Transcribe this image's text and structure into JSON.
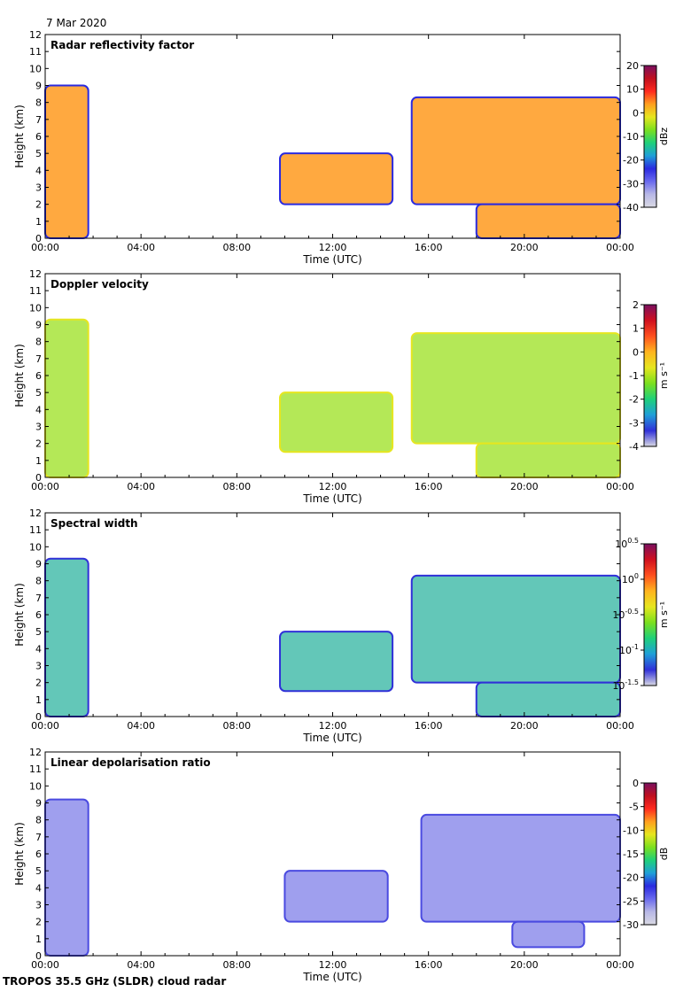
{
  "date": "7 Mar 2020",
  "footer": "TROPOS 35.5 GHz (SLDR) cloud radar",
  "shared": {
    "xlabel": "Time (UTC)",
    "ylabel": "Height (km)",
    "xticks": [
      "00:00",
      "04:00",
      "08:00",
      "12:00",
      "16:00",
      "20:00",
      "00:00"
    ],
    "yticks": [
      "0",
      "1",
      "2",
      "3",
      "4",
      "5",
      "6",
      "7",
      "8",
      "9",
      "10",
      "11",
      "12"
    ],
    "xlim_hours": [
      0,
      24
    ],
    "ylim_km": [
      0,
      12
    ]
  },
  "chart_data": [
    {
      "type": "heatmap",
      "title": "Radar reflectivity factor",
      "colorbar": {
        "label": "dBz",
        "ticks": [
          "20",
          "10",
          "0",
          "-10",
          "-20",
          "-30",
          "-40"
        ],
        "range": [
          -40,
          20
        ]
      },
      "echoes": [
        {
          "start": 0.0,
          "end": 1.8,
          "bottom": 0.0,
          "top": 9.0
        },
        {
          "start": 9.8,
          "end": 14.5,
          "bottom": 2.0,
          "top": 5.0
        },
        {
          "start": 15.3,
          "end": 24.0,
          "bottom": 2.0,
          "top": 8.3
        },
        {
          "start": 18.0,
          "end": 24.0,
          "bottom": 0.0,
          "top": 2.0
        }
      ]
    },
    {
      "type": "heatmap",
      "title": "Doppler velocity",
      "colorbar": {
        "label": "m s⁻¹",
        "ticks": [
          "2",
          "1",
          "0",
          "-1",
          "-2",
          "-3",
          "-4"
        ],
        "range": [
          -4,
          2
        ]
      },
      "echoes": [
        {
          "start": 0.0,
          "end": 1.8,
          "bottom": 0.0,
          "top": 9.3
        },
        {
          "start": 9.8,
          "end": 14.5,
          "bottom": 1.5,
          "top": 5.0
        },
        {
          "start": 15.3,
          "end": 24.0,
          "bottom": 2.0,
          "top": 8.5
        },
        {
          "start": 18.0,
          "end": 24.0,
          "bottom": 0.0,
          "top": 2.0
        }
      ]
    },
    {
      "type": "heatmap",
      "title": "Spectral width",
      "colorbar": {
        "label": "m s⁻¹",
        "ticks": [
          "10^0.5",
          "10^0",
          "10^-0.5",
          "10^-1",
          "10^-1.5"
        ],
        "range": [
          -1.5,
          0.5
        ],
        "log": true
      },
      "echoes": [
        {
          "start": 0.0,
          "end": 1.8,
          "bottom": 0.0,
          "top": 9.3
        },
        {
          "start": 9.8,
          "end": 14.5,
          "bottom": 1.5,
          "top": 5.0
        },
        {
          "start": 15.3,
          "end": 24.0,
          "bottom": 2.0,
          "top": 8.3
        },
        {
          "start": 18.0,
          "end": 24.0,
          "bottom": 0.0,
          "top": 2.0
        }
      ]
    },
    {
      "type": "heatmap",
      "title": "Linear depolarisation ratio",
      "colorbar": {
        "label": "dB",
        "ticks": [
          "0",
          "-5",
          "-10",
          "-15",
          "-20",
          "-25",
          "-30"
        ],
        "range": [
          -30,
          0
        ]
      },
      "echoes": [
        {
          "start": 0.0,
          "end": 1.8,
          "bottom": 0.0,
          "top": 9.2
        },
        {
          "start": 10.0,
          "end": 14.3,
          "bottom": 2.0,
          "top": 5.0
        },
        {
          "start": 15.7,
          "end": 24.0,
          "bottom": 2.0,
          "top": 8.3
        },
        {
          "start": 19.5,
          "end": 22.5,
          "bottom": 0.5,
          "top": 2.0
        }
      ]
    }
  ]
}
